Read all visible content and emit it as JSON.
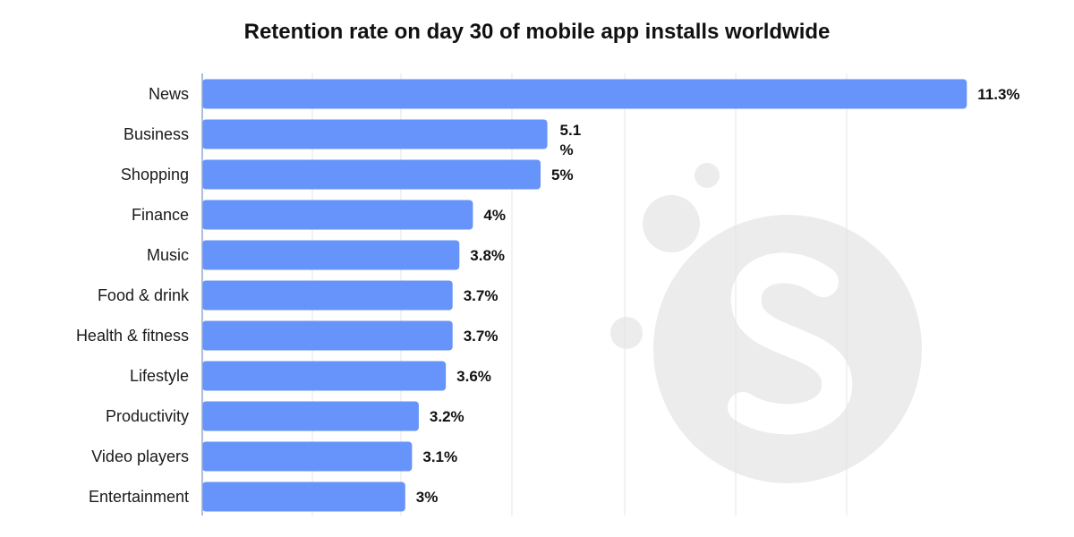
{
  "chart_data": {
    "type": "bar",
    "orientation": "horizontal",
    "title": "Retention rate on day 30 of mobile app installs worldwide",
    "xlabel": "",
    "ylabel": "",
    "categories": [
      "News",
      "Business",
      "Shopping",
      "Finance",
      "Music",
      "Food & drink",
      "Health & fitness",
      "Lifestyle",
      "Productivity",
      "Video players",
      "Entertainment"
    ],
    "values": [
      11.3,
      5.1,
      5.0,
      4.0,
      3.8,
      3.7,
      3.7,
      3.6,
      3.2,
      3.1,
      3.0
    ],
    "value_labels": [
      "11.3%",
      "5.1\n%",
      "5%",
      "4%",
      "3.8%",
      "3.7%",
      "3.7%",
      "3.6%",
      "3.2%",
      "3.1%",
      "3%"
    ],
    "xlim": [
      0,
      12
    ],
    "grid": true,
    "legend": "none",
    "bar_color": "#6694fa",
    "watermark_color": "#ececec"
  }
}
